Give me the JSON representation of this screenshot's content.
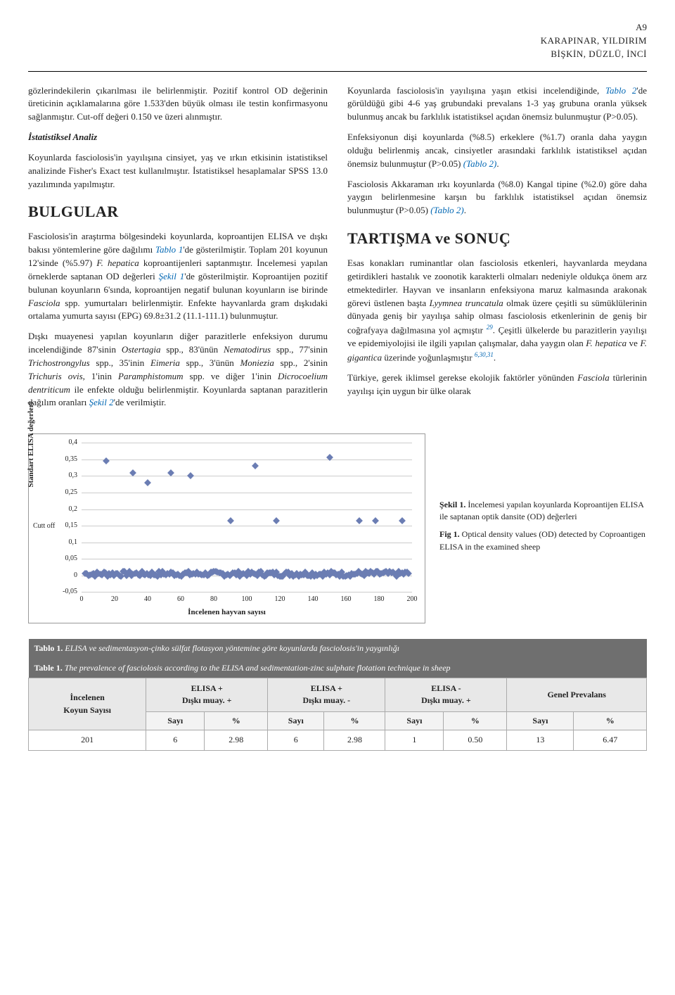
{
  "header": {
    "page_number": "A9",
    "authors_line1": "KARAPINAR, YILDIRIM",
    "authors_line2": "BİŞKİN, DÜZLÜ, İNCİ"
  },
  "left_col": {
    "p1": "gözlerindekilerin çıkarılması ile belirlenmiştir. Pozitif kontrol OD değerinin üreticinin açıklamalarına göre 1.533'den büyük olması ile testin konfirmasyonu sağlanmıştır. Cut-off değeri 0.150 ve üzeri alınmıştır.",
    "sub_h": "İstatistiksel Analiz",
    "p2": "Koyunlarda fasciolosis'in yayılışına cinsiyet, yaş ve ırkın etkisinin istatistiksel analizinde Fisher's Exact test kullanılmıştır. İstatistiksel hesaplamalar SPSS 13.0 yazılımında yapılmıştır.",
    "section": "BULGULAR",
    "p3a": "Fasciolosis'in araştırma bölgesindeki koyunlarda, koproantijen ELISA ve dışkı bakısı yöntemlerine göre dağılımı ",
    "ref1": "Tablo 1",
    "p3b": "'de gösterilmiştir. Toplam 201 koyunun 12'sinde (%5.97) ",
    "ital1": "F. hepatica",
    "p3c": " koproantijenleri saptanmıştır. İncelemesi yapılan örneklerde saptanan OD değerleri ",
    "ref2": "Şekil 1",
    "p3d": "'de gösterilmiştir. Koproantijen pozitif bulunan koyunların 6'sında, koproantijen negatif bulunan koyunların ise birinde ",
    "ital2": "Fasciola",
    "p3e": " spp. yumurtaları belirlenmiştir. Enfekte hayvanlarda gram dışkıdaki ortalama yumurta sayısı (EPG) 69.8±31.2 (11.1-111.1) bulunmuştur.",
    "p4a": "Dışkı muayenesi yapılan koyunların diğer parazitlerle enfeksiyon durumu incelendiğinde 87'sinin ",
    "sp1": "Ostertagia",
    "p4b": " spp., 83'ünün ",
    "sp2": "Nematodirus",
    "p4c": " spp., 77'sinin ",
    "sp3": "Trichostrongylus",
    "p4d": " spp., 35'inin ",
    "sp4": "Eimeria",
    "p4e": " spp., 3'ünün ",
    "sp5": "Moniezia",
    "p4f": " spp., 2'sinin ",
    "sp6": "Trichuris ovis",
    "p4g": ", 1'inin ",
    "sp7": "Paramphistomum",
    "p4h": " spp. ve diğer 1'inin ",
    "sp8": "Dicrocoelium dentriticum",
    "p4i": " ile enfekte olduğu belirlenmiştir. Koyunlarda saptanan parazitlerin dağılım oranları ",
    "ref3": "Şekil 2",
    "p4j": "'de verilmiştir."
  },
  "right_col": {
    "p1a": "Koyunlarda fasciolosis'in yayılışına yaşın etkisi incelendiğinde, ",
    "ref1": "Tablo 2",
    "p1b": "'de görüldüğü gibi 4-6 yaş grubundaki prevalans 1-3 yaş grubuna oranla yüksek bulunmuş ancak bu farklılık istatistiksel açıdan önemsiz bulunmuştur (P>0.05).",
    "p2a": "Enfeksiyonun dişi koyunlarda (%8.5) erkeklere (%1.7) oranla daha yaygın olduğu belirlenmiş ancak, cinsiyetler arasındaki farklılık istatistiksel açıdan önemsiz bulunmuştur (P>0.05) ",
    "ref2": "(Tablo 2)",
    "p2c": ".",
    "p3a": "Fasciolosis Akkaraman ırkı koyunlarda (%8.0) Kangal tipine (%2.0) göre daha yaygın belirlenmesine karşın bu farklılık istatistiksel açıdan önemsiz bulunmuştur (P>0.05) ",
    "ref3": "(Tablo 2)",
    "p3c": ".",
    "section": "TARTIŞMA ve SONUÇ",
    "p4a": "Esas konakları ruminantlar olan fasciolosis etkenleri, hayvanlarda meydana getirdikleri hastalık ve zoonotik karakterli olmaları nedeniyle oldukça önem arz etmektedirler. Hayvan ve insanların enfeksiyona maruz kalmasında arakonak görevi üstlenen başta ",
    "ital1": "Lyymnea truncatula",
    "p4b": " olmak üzere çeşitli su sümüklülerinin dünyada geniş bir yayılışa sahip olması fasciolosis etkenlerinin de geniş bir coğrafyaya dağılmasına yol açmıştır ",
    "sup1": "29",
    "p4c": ". Çeşitli ülkelerde bu parazitlerin yayılışı ve epidemiyolojisi ile ilgili yapılan çalışmalar, daha yaygın olan ",
    "ital2": "F. hepatica",
    "p4d": " ve ",
    "ital3": "F. gigantica",
    "p4e": " üzerinde yoğunlaşmıştır ",
    "sup2": "6,30,31",
    "p4f": ".",
    "p5a": "Türkiye, gerek iklimsel gerekse ekolojik faktörler yönünden ",
    "ital4": "Fasciola",
    "p5b": " türlerinin yayılışı için uygun bir ülke olarak"
  },
  "chart": {
    "type": "scatter",
    "y_title": "Standart ELISA değerleri",
    "x_title": "İncelenen hayvan sayısı",
    "cutoff_label": "Cutt off",
    "cutoff_value": 0.15,
    "xlim": [
      0,
      200
    ],
    "ylim": [
      -0.05,
      0.4
    ],
    "xticks": [
      0,
      20,
      40,
      60,
      80,
      100,
      120,
      140,
      160,
      180,
      200
    ],
    "yticks": [
      -0.05,
      0,
      0.05,
      0.1,
      0.15,
      0.2,
      0.25,
      0.3,
      0.35,
      0.4
    ],
    "ytick_labels": [
      "-0,05",
      "0",
      "0,05",
      "0,1",
      "0,15",
      "0,2",
      "0,25",
      "0,3",
      "0,35",
      "0,4"
    ],
    "marker_color": "#6b7db3",
    "grid_color": "#cccccc",
    "background_color": "#ffffff",
    "marker_size": 7,
    "high_points": [
      {
        "x": 15,
        "y": 0.345
      },
      {
        "x": 31,
        "y": 0.31
      },
      {
        "x": 40,
        "y": 0.28
      },
      {
        "x": 54,
        "y": 0.31
      },
      {
        "x": 66,
        "y": 0.3
      },
      {
        "x": 90,
        "y": 0.165
      },
      {
        "x": 105,
        "y": 0.33
      },
      {
        "x": 118,
        "y": 0.165
      },
      {
        "x": 150,
        "y": 0.355
      },
      {
        "x": 168,
        "y": 0.165
      },
      {
        "x": 178,
        "y": 0.165
      },
      {
        "x": 194,
        "y": 0.165
      }
    ],
    "baseline_y": 0.005,
    "baseline_jitter": 0.008,
    "baseline_count": 189
  },
  "caption": {
    "tr_b": "Şekil 1.",
    "tr": " İncelemesi yapılan koyunlarda Koproantijen ELISA ile saptanan optik dansite (OD) değerleri",
    "en_b": "Fig 1.",
    "en": " Optical density values (OD) detected by Coproantigen ELISA in the examined sheep"
  },
  "table": {
    "title_tr_b": "Tablo 1.",
    "title_tr": " ELISA ve sedimentasyon-çinko sülfat flotasyon yöntemine göre koyunlarda fasciolosis'in yaygınlığı",
    "title_en_b": "Table 1.",
    "title_en": " The prevalence of fasciolosis according to the ELISA and sedimentation-zinc sulphate flotation technique in sheep",
    "col0": "İncelenen\nKoyun Sayısı",
    "col1": "ELISA +\nDışkı muay. +",
    "col2": "ELISA +\nDışkı muay. -",
    "col3": "ELISA -\nDışkı muay. +",
    "col4": "Genel Prevalans",
    "sub_n": "Sayı",
    "sub_p": "%",
    "row": [
      "201",
      "6",
      "2.98",
      "6",
      "2.98",
      "1",
      "0.50",
      "13",
      "6.47"
    ]
  }
}
